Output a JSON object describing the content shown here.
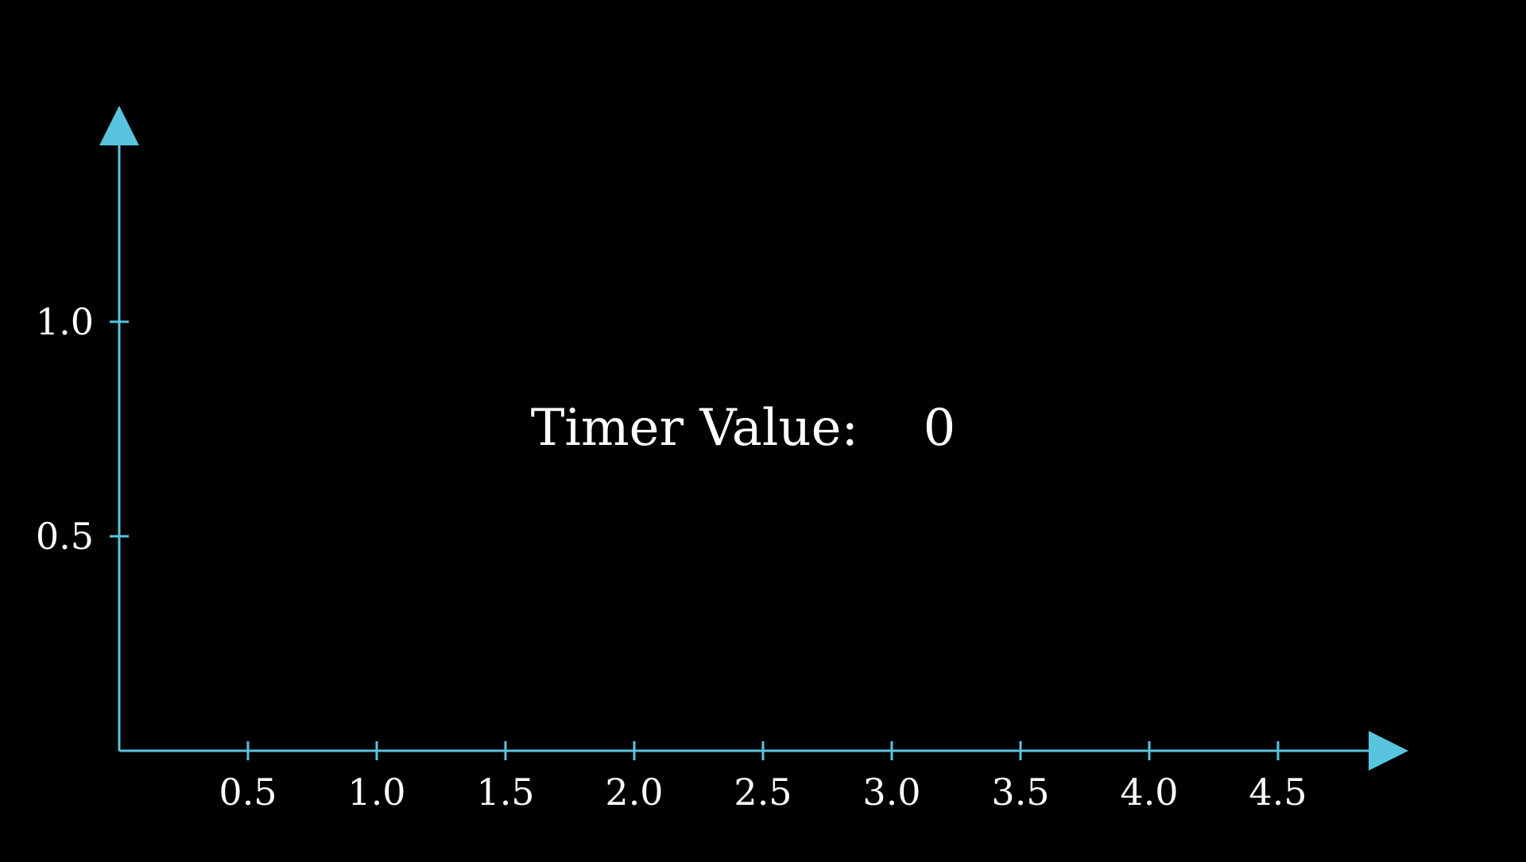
{
  "chart_data": {
    "type": "line",
    "title": "",
    "xlabel": "",
    "ylabel": "",
    "xlim": [
      0,
      5
    ],
    "ylim": [
      0,
      1.5
    ],
    "x_ticks": [
      0.5,
      1.0,
      1.5,
      2.0,
      2.5,
      3.0,
      3.5,
      4.0,
      4.5
    ],
    "x_tick_labels": [
      "0.5",
      "1.0",
      "1.5",
      "2.0",
      "2.5",
      "3.0",
      "3.5",
      "4.0",
      "4.5"
    ],
    "y_ticks": [
      0.5,
      1.0
    ],
    "y_tick_labels": [
      "0.5",
      "1.0"
    ],
    "grid": false,
    "series": []
  },
  "annotation": {
    "label": "Timer Value:",
    "value": "0"
  },
  "colors": {
    "background": "#000000",
    "axis": "#58c4dd",
    "text": "#ffffff"
  }
}
